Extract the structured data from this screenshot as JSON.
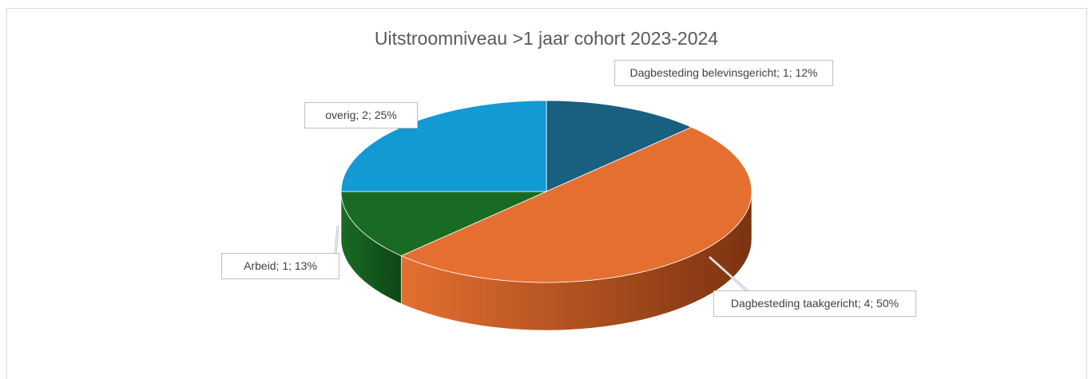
{
  "chart_data": {
    "type": "pie",
    "title": "Uitstroomniveau >1 jaar cohort 2023-2024",
    "values": [
      1,
      4,
      1,
      2
    ],
    "value_labels": [
      "Dagbesteding belevinsgericht; 1; 12%",
      "Dagbesteding taakgericht; 4; 50%",
      "Arbeid; 1; 13%",
      "overig; 2; 25%"
    ],
    "colors": [
      "#195f7f",
      "#e46f30",
      "#196b24",
      "#139ad3"
    ],
    "side_colors": [
      "#0e3a4e",
      "#7c3311",
      "#0e4617",
      "#0b5f85"
    ],
    "start_angle": 0,
    "three_d": true
  }
}
